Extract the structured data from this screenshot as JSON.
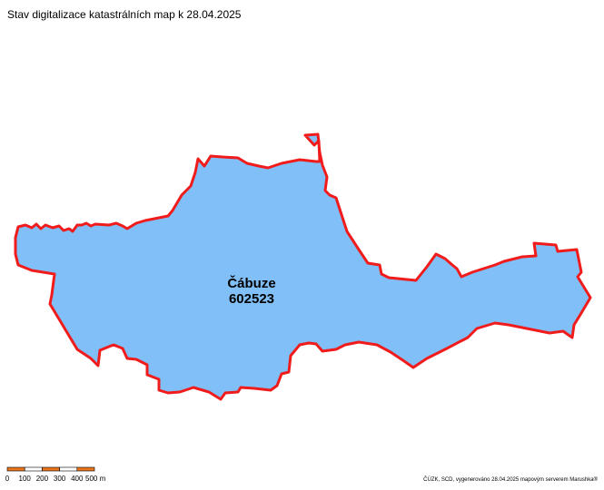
{
  "title": "Stav digitalizace katastrálních map k 28.04.2025",
  "area": {
    "name": "Čábuze",
    "code": "602523"
  },
  "scale_bar": {
    "labels": [
      "0",
      "100",
      "200",
      "300",
      "400",
      "500 m"
    ]
  },
  "credit": "ČÚZK, SCD, vygenerováno 28.04.2025 mapovým serverem Marushka®"
}
